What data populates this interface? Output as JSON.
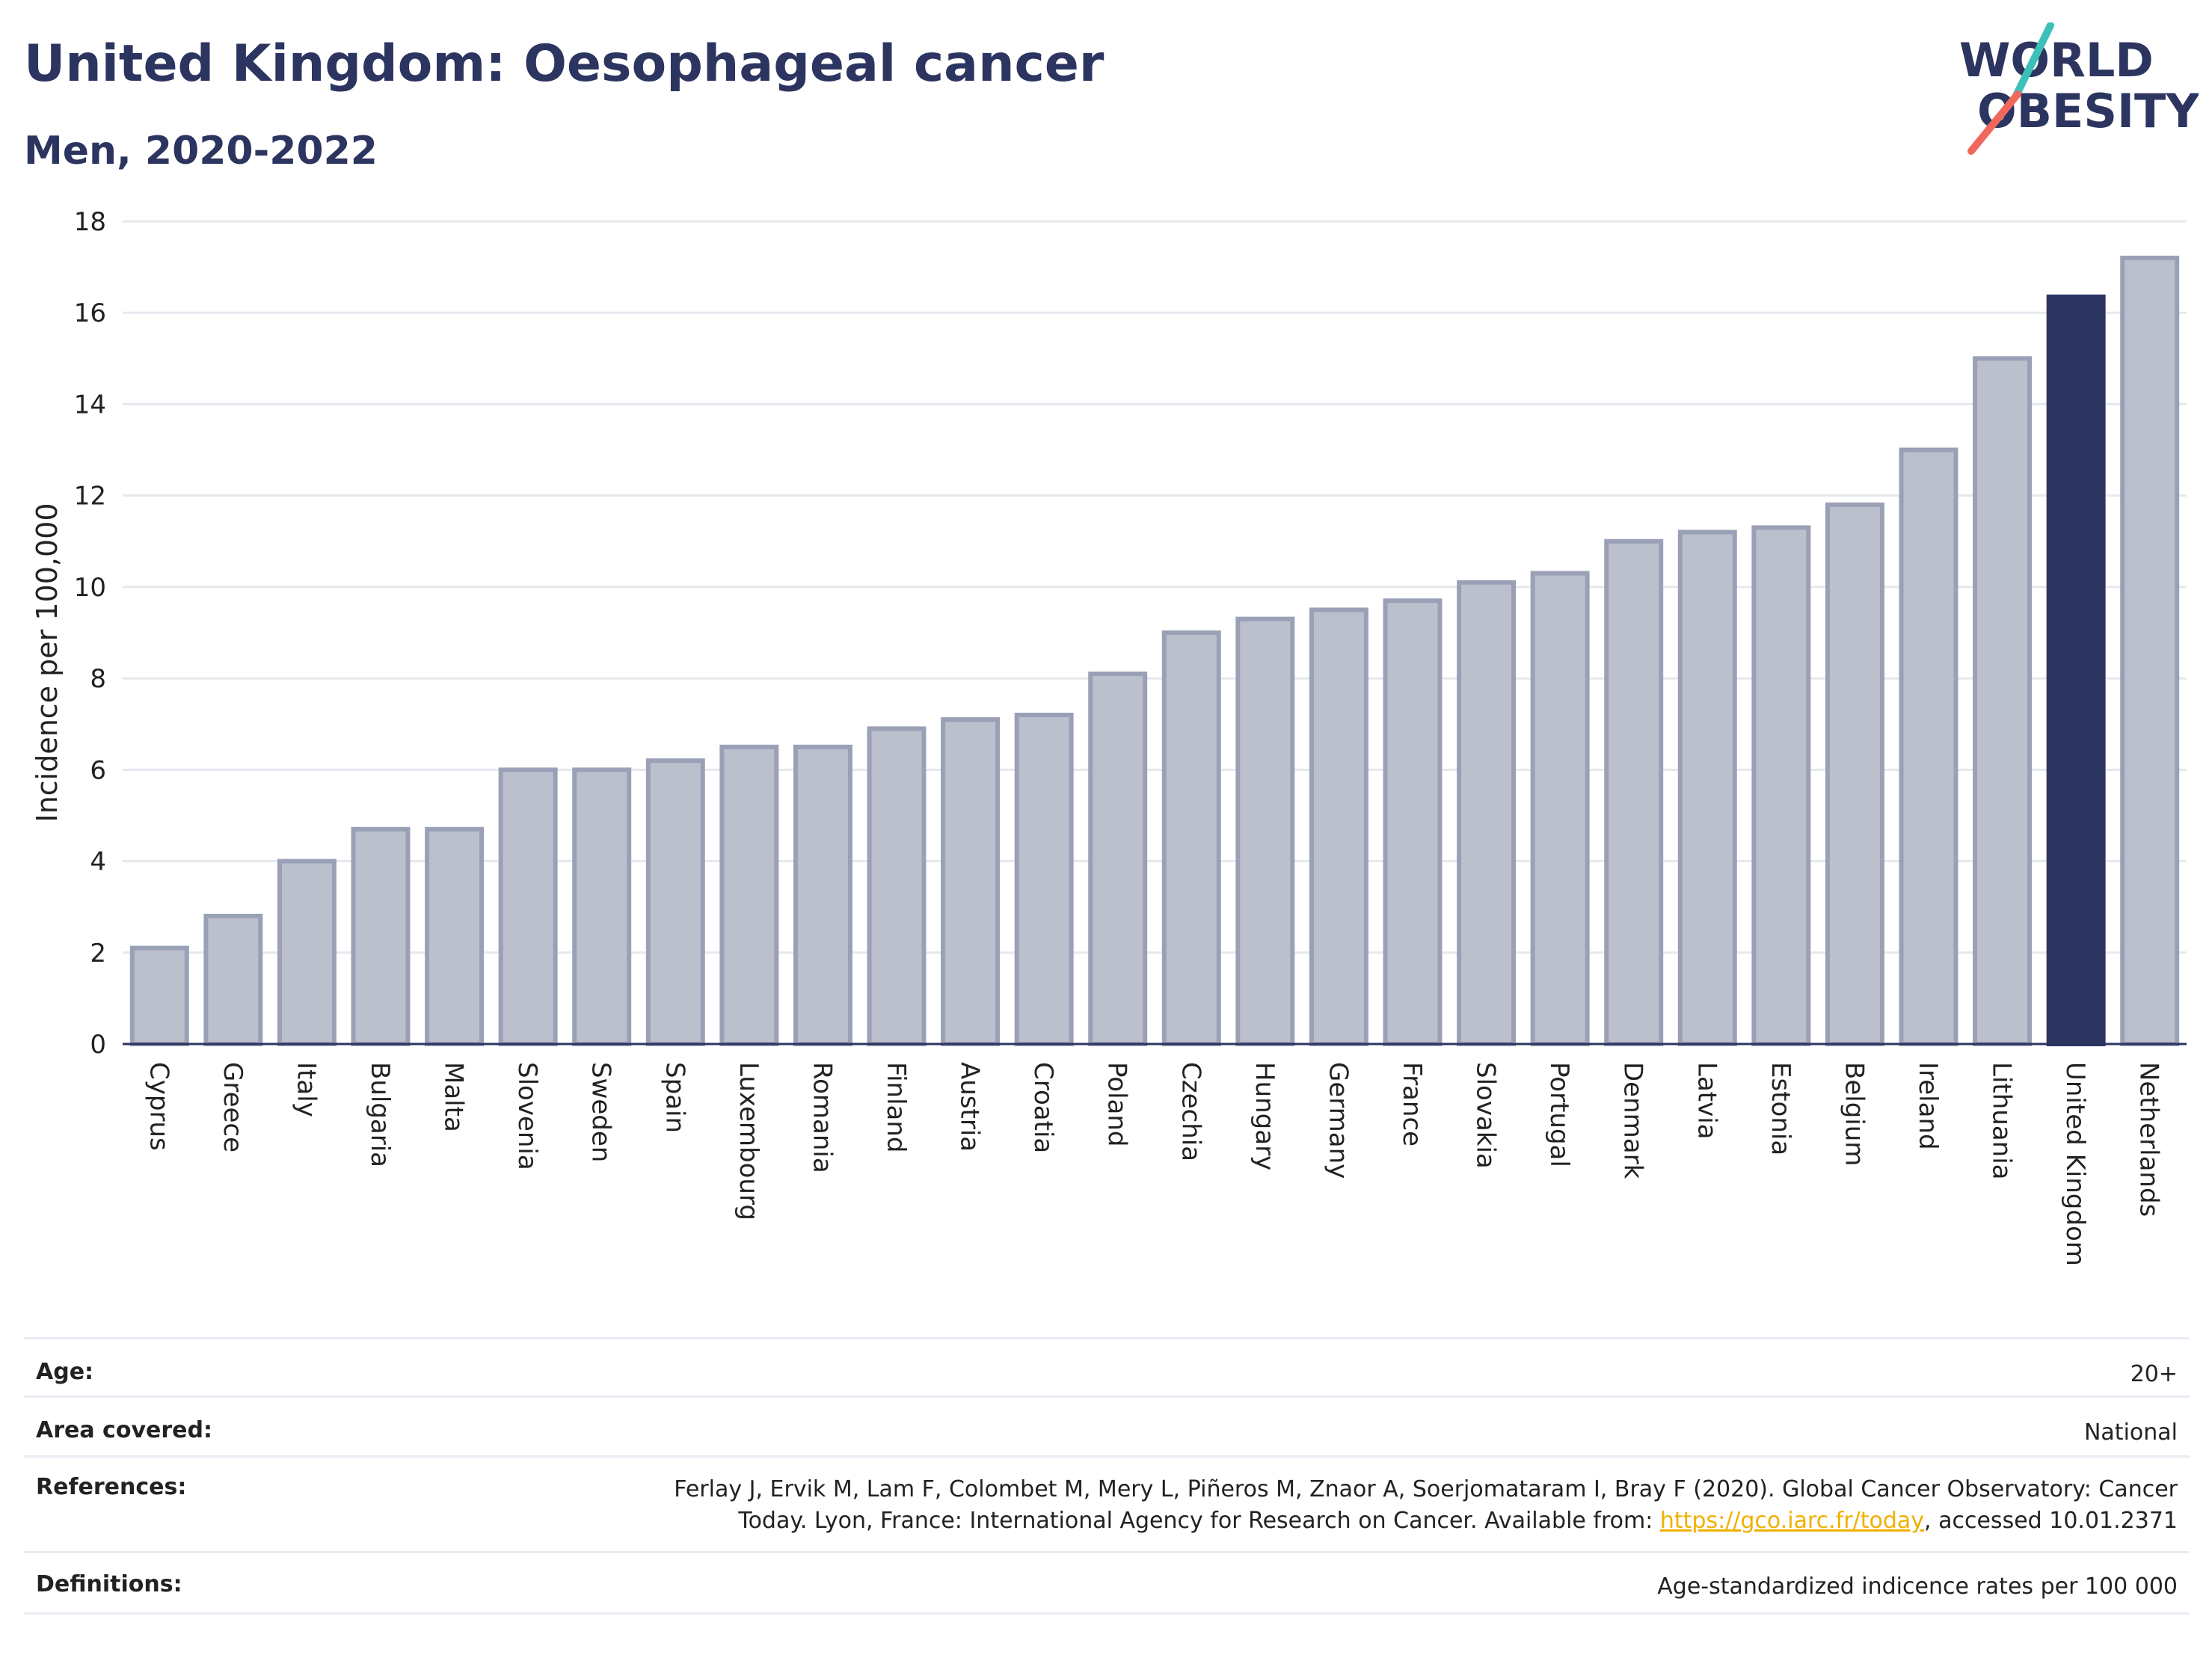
{
  "title": "United Kingdom: Oesophageal cancer",
  "subtitle": "Men, 2020-2022",
  "logo": {
    "line1": "WORLD",
    "line2": "OBESITY"
  },
  "colors": {
    "text": "#2c3560",
    "highlight_bar": "#2c3560",
    "bar_fill": "#bcc0cc",
    "bar_stroke": "#9aa0b6",
    "grid": "#e6e8ee",
    "link": "#f0b000",
    "logo_teal": "#3cc1b8",
    "logo_red": "#f0685c"
  },
  "chart_data": {
    "type": "bar",
    "ylabel": "Incidence per 100,000",
    "ylim": [
      0,
      18
    ],
    "yticks": [
      0,
      2,
      4,
      6,
      8,
      10,
      12,
      14,
      16,
      18
    ],
    "grid": true,
    "highlight": "United Kingdom",
    "categories": [
      "Cyprus",
      "Greece",
      "Italy",
      "Bulgaria",
      "Malta",
      "Slovenia",
      "Sweden",
      "Spain",
      "Luxembourg",
      "Romania",
      "Finland",
      "Austria",
      "Croatia",
      "Poland",
      "Czechia",
      "Hungary",
      "Germany",
      "France",
      "Slovakia",
      "Portugal",
      "Denmark",
      "Latvia",
      "Estonia",
      "Belgium",
      "Ireland",
      "Lithuania",
      "United Kingdom",
      "Netherlands"
    ],
    "values": [
      2.1,
      2.8,
      4.0,
      4.7,
      4.7,
      6.0,
      6.0,
      6.2,
      6.5,
      6.5,
      6.9,
      7.1,
      7.2,
      8.1,
      9.0,
      9.3,
      9.5,
      9.7,
      10.1,
      10.3,
      11.0,
      11.2,
      11.3,
      11.8,
      13.0,
      15.0,
      16.35,
      17.2
    ]
  },
  "meta": {
    "age_label": "Age:",
    "age_value": "20+",
    "area_label": "Area covered:",
    "area_value": "National",
    "references_label": "References:",
    "references_line1": "Ferlay J, Ervik M, Lam F, Colombet M, Mery L, Piñeros M, Znaor A, Soerjomataram I, Bray F (2020). Global Cancer Observatory: Cancer",
    "references_line2_pre": "Today. Lyon, France: International Agency for Research on Cancer. Available from: ",
    "references_link": "https://gco.iarc.fr/today",
    "references_line2_post": ", accessed 10.01.2371",
    "definitions_label": "Definitions:",
    "definitions_value": "Age-standardized indicence rates per 100 000"
  }
}
